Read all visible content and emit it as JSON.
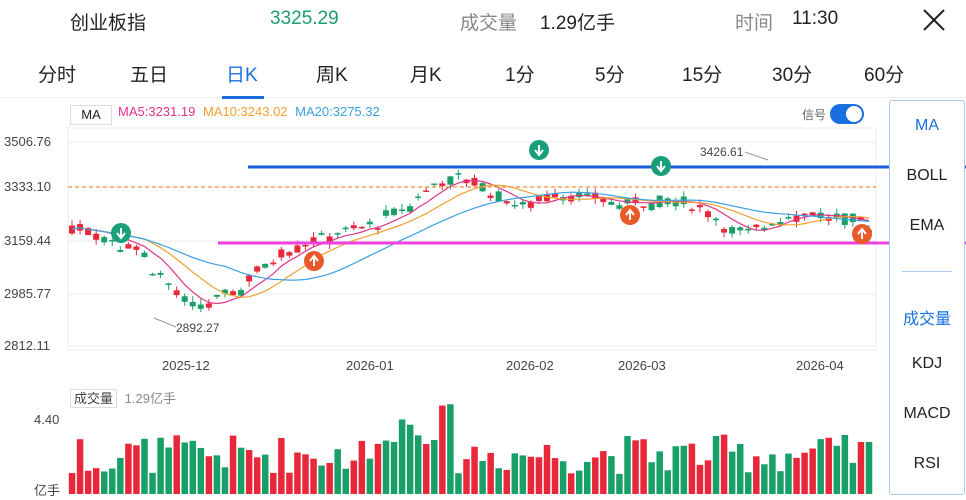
{
  "header": {
    "title": "创业板指",
    "price": "3325.29",
    "volume_label": "成交量",
    "volume_value": "1.29亿手",
    "time_label": "时间",
    "time_value": "11:30"
  },
  "tabs": [
    "分时",
    "五日",
    "日K",
    "周K",
    "月K",
    "1分",
    "5分",
    "15分",
    "30分",
    "60分"
  ],
  "active_tab": "日K",
  "ma_legend": {
    "label": "MA",
    "ma5": "MA5:3231.19",
    "ma10": "MA10:3243.02",
    "ma20": "MA20:3275.32",
    "ma5_color": "#e0338a",
    "ma10_color": "#f0a030",
    "ma20_color": "#3aa0e0"
  },
  "signal_label": "信号",
  "side_menu": {
    "top": [
      "MA",
      "BOLL",
      "EMA"
    ],
    "bottom": [
      "成交量",
      "KDJ",
      "MACD",
      "RSI"
    ]
  },
  "y_axis": [
    "3506.76",
    "3333.10",
    "3159.44",
    "2985.77",
    "2812.11"
  ],
  "x_axis": [
    "2025-12",
    "2026-01",
    "2026-02",
    "2026-03",
    "2026-04"
  ],
  "high_label": "3426.61",
  "low_label": "2892.27",
  "volume_panel": {
    "label": "成交量",
    "value": "1.29亿手",
    "ymax": "4.40",
    "unit": "亿手"
  },
  "colors": {
    "up": "#e8283a",
    "down": "#18a068",
    "blue_line": "#1a5fd8",
    "pink_line": "#f040e0",
    "orange_dash": "#f09040"
  }
}
